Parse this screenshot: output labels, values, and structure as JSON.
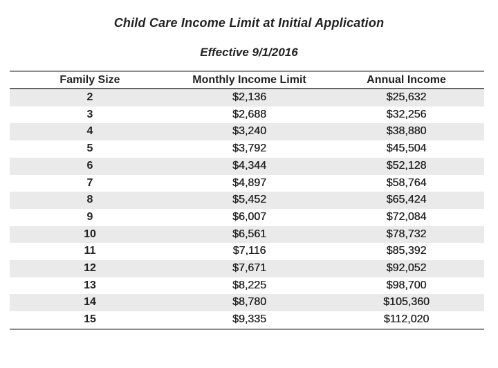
{
  "title": "Child Care Income Limit at Initial Application",
  "subtitle": "Effective 9/1/2016",
  "table": {
    "columns": [
      "Family Size",
      "Monthly Income Limit",
      "Annual Income"
    ],
    "rows": [
      [
        "2",
        "$2,136",
        "$25,632"
      ],
      [
        "3",
        "$2,688",
        "$32,256"
      ],
      [
        "4",
        "$3,240",
        "$38,880"
      ],
      [
        "5",
        "$3,792",
        "$45,504"
      ],
      [
        "6",
        "$4,344",
        "$52,128"
      ],
      [
        "7",
        "$4,897",
        "$58,764"
      ],
      [
        "8",
        "$5,452",
        "$65,424"
      ],
      [
        "9",
        "$6,007",
        "$72,084"
      ],
      [
        "10",
        "$6,561",
        "$78,732"
      ],
      [
        "11",
        "$7,116",
        "$85,392"
      ],
      [
        "12",
        "$7,671",
        "$92,052"
      ],
      [
        "13",
        "$8,225",
        "$98,700"
      ],
      [
        "14",
        "$8,780",
        "$105,360"
      ],
      [
        "15",
        "$9,335",
        "$112,020"
      ]
    ]
  },
  "colors": {
    "stripe": "#eaeaea",
    "rule": "#8c8c8c",
    "header_rule": "#636363",
    "text": "#222222",
    "background": "#ffffff"
  }
}
